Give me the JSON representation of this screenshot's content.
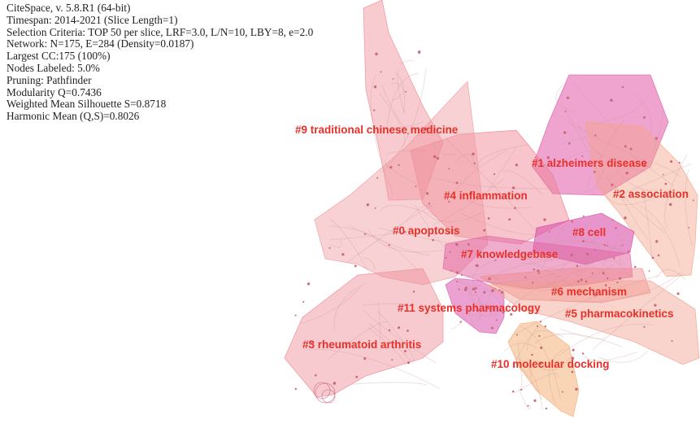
{
  "info_lines": [
    "CiteSpace, v. 5.8.R1 (64-bit)",
    "Timespan: 2014-2021 (Slice Length=1)",
    "Selection Criteria: TOP 50 per slice, LRF=3.0, L/N=10, LBY=8, e=2.0",
    "Network: N=175, E=284 (Density=0.0187)",
    "Largest CC:175 (100%)",
    "Nodes Labeled: 5.0%",
    "Pruning: Pathfinder",
    "Modularity Q=0.7436",
    "Weighted Mean Silhouette S=0.8718",
    "Harmonic Mean (Q,S)=0.8026"
  ],
  "clusters": [
    {
      "id": "c9",
      "label": "#9 traditional chinese medicine",
      "color": "#ee8c95"
    },
    {
      "id": "c1",
      "label": "#1 alzheimers disease",
      "color": "#e05aa8"
    },
    {
      "id": "c4",
      "label": "#4 inflammation",
      "color": "#ee7e8c"
    },
    {
      "id": "c2",
      "label": "#2 association",
      "color": "#f4a58a"
    },
    {
      "id": "c0",
      "label": "#0 apoptosis",
      "color": "#f09aa0"
    },
    {
      "id": "c8",
      "label": "#8 cell",
      "color": "#d94fa8"
    },
    {
      "id": "c7",
      "label": "#7 knowledgebase",
      "color": "#e267a4"
    },
    {
      "id": "c6",
      "label": "#6 mechanism",
      "color": "#f08a8a"
    },
    {
      "id": "c11",
      "label": "#11 systems pharmacology",
      "color": "#de62b2"
    },
    {
      "id": "c5",
      "label": "#5 pharmacokinetics",
      "color": "#f1a08f"
    },
    {
      "id": "c3",
      "label": "#3 rheumatoid arthritis",
      "color": "#ee8a95"
    },
    {
      "id": "c10",
      "label": "#10 molecular docking",
      "color": "#f4b078"
    }
  ],
  "label_color": "#e8302a"
}
